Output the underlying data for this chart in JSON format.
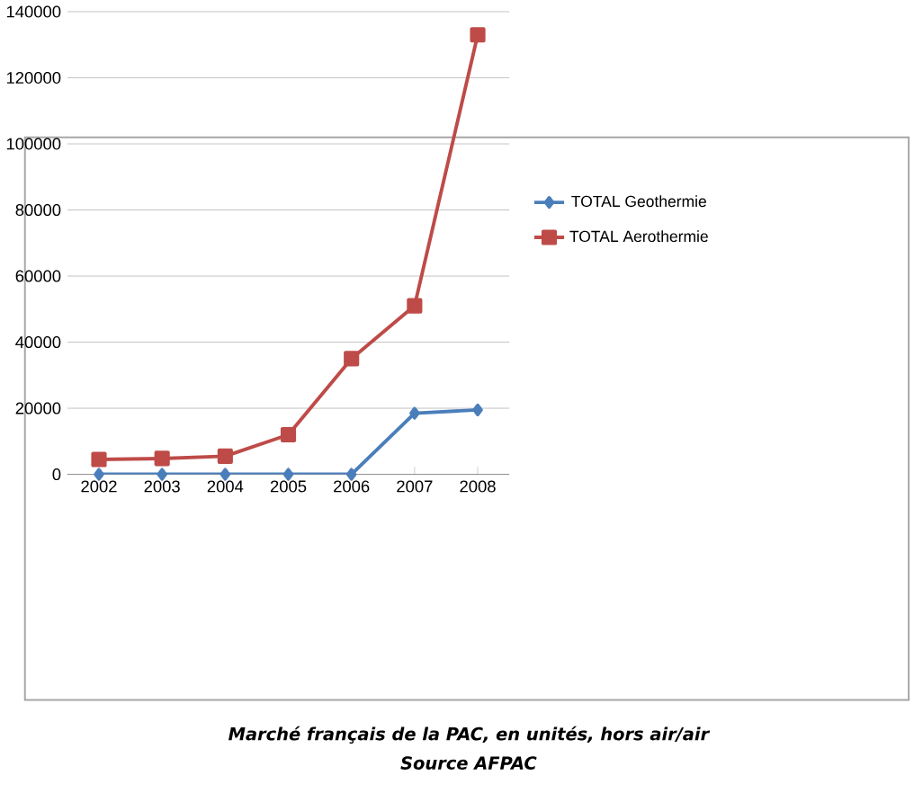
{
  "chart_data": {
    "type": "line",
    "categories": [
      "2002",
      "2003",
      "2004",
      "2005",
      "2006",
      "2007",
      "2008"
    ],
    "series": [
      {
        "name": "TOTAL Geothermie",
        "color": "#4a7ebb",
        "marker": "diamond",
        "values": [
          0,
          0,
          0,
          0,
          0,
          18500,
          19500
        ]
      },
      {
        "name": "TOTAL Aerothermie",
        "color": "#be4b48",
        "marker": "square",
        "values": [
          4500,
          4800,
          5500,
          12000,
          35000,
          51000,
          133000
        ]
      }
    ],
    "ylim": [
      0,
      140000
    ],
    "yticks": [
      0,
      20000,
      40000,
      60000,
      80000,
      100000,
      120000,
      140000
    ],
    "grid": "y",
    "legend": "right",
    "line_style": "solid",
    "annotations": [
      "Marché français de la PAC, en unités, hors air/air",
      "Source AFPAC"
    ]
  }
}
